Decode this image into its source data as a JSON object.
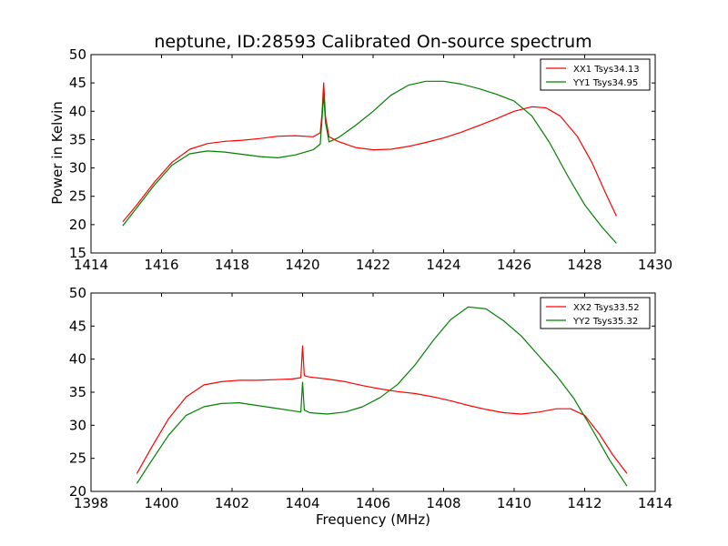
{
  "chart_data": [
    {
      "type": "line",
      "title": "neptune, ID:28593 Calibrated On-source spectrum",
      "xlabel": "",
      "ylabel": "Power in Kelvin",
      "xlim": [
        1414,
        1430
      ],
      "ylim": [
        15,
        50
      ],
      "xticks": [
        1414,
        1416,
        1418,
        1420,
        1422,
        1424,
        1426,
        1428,
        1430
      ],
      "yticks": [
        15,
        20,
        25,
        30,
        35,
        40,
        45,
        50
      ],
      "legend_position": "top-right",
      "series": [
        {
          "name": "XX1 Tsys34.13",
          "color": "#ff0000",
          "x": [
            1414.9,
            1415.3,
            1415.8,
            1416.3,
            1416.8,
            1417.3,
            1417.8,
            1418.3,
            1418.8,
            1419.3,
            1419.8,
            1420.3,
            1420.5,
            1420.55,
            1420.6,
            1420.65,
            1420.75,
            1421.0,
            1421.5,
            1422.0,
            1422.5,
            1423.0,
            1423.5,
            1424.0,
            1424.5,
            1425.0,
            1425.5,
            1426.0,
            1426.5,
            1426.9,
            1427.3,
            1427.8,
            1428.2,
            1428.6,
            1428.9
          ],
          "y": [
            20.5,
            23.5,
            27.5,
            31.0,
            33.3,
            34.3,
            34.7,
            34.9,
            35.2,
            35.6,
            35.7,
            35.5,
            36.2,
            39.5,
            45.0,
            39.0,
            35.5,
            34.7,
            33.6,
            33.2,
            33.3,
            33.8,
            34.5,
            35.3,
            36.3,
            37.5,
            38.7,
            40.0,
            40.8,
            40.6,
            39.2,
            35.5,
            31.0,
            25.5,
            21.5
          ]
        },
        {
          "name": "YY1 Tsys34.95",
          "color": "#008000",
          "x": [
            1414.9,
            1415.3,
            1415.8,
            1416.3,
            1416.8,
            1417.3,
            1417.8,
            1418.3,
            1418.8,
            1419.3,
            1419.8,
            1420.3,
            1420.5,
            1420.55,
            1420.6,
            1420.65,
            1420.75,
            1421.0,
            1421.5,
            1422.0,
            1422.5,
            1423.0,
            1423.5,
            1424.0,
            1424.5,
            1425.0,
            1425.5,
            1426.0,
            1426.5,
            1427.0,
            1427.5,
            1428.0,
            1428.5,
            1428.9
          ],
          "y": [
            19.8,
            23.0,
            27.0,
            30.5,
            32.5,
            33.0,
            32.8,
            32.4,
            32.0,
            31.8,
            32.3,
            33.2,
            34.2,
            38.5,
            43.0,
            38.0,
            34.6,
            35.3,
            37.5,
            40.0,
            42.8,
            44.6,
            45.3,
            45.3,
            44.8,
            44.0,
            43.0,
            41.8,
            39.2,
            34.5,
            28.8,
            23.5,
            19.5,
            16.7
          ]
        }
      ]
    },
    {
      "type": "line",
      "title": "",
      "xlabel": "Frequency (MHz)",
      "ylabel": "",
      "xlim": [
        1398,
        1414
      ],
      "ylim": [
        20,
        50
      ],
      "xticks": [
        1398,
        1400,
        1402,
        1404,
        1406,
        1408,
        1410,
        1412,
        1414
      ],
      "yticks": [
        20,
        25,
        30,
        35,
        40,
        45,
        50
      ],
      "legend_position": "top-right",
      "series": [
        {
          "name": "XX2 Tsys33.52",
          "color": "#ff0000",
          "x": [
            1399.3,
            1399.7,
            1400.2,
            1400.7,
            1401.2,
            1401.7,
            1402.2,
            1402.7,
            1403.2,
            1403.7,
            1403.95,
            1404.0,
            1404.05,
            1404.2,
            1404.7,
            1405.2,
            1405.7,
            1406.2,
            1406.7,
            1407.2,
            1407.7,
            1408.2,
            1408.7,
            1409.2,
            1409.7,
            1410.2,
            1410.7,
            1411.2,
            1411.6,
            1412.0,
            1412.4,
            1412.8,
            1413.2
          ],
          "y": [
            22.7,
            26.5,
            31.0,
            34.3,
            36.1,
            36.6,
            36.8,
            36.8,
            36.9,
            37.0,
            37.2,
            42.0,
            37.5,
            37.3,
            37.0,
            36.6,
            36.0,
            35.5,
            35.1,
            34.8,
            34.3,
            33.7,
            33.0,
            32.4,
            31.9,
            31.7,
            32.0,
            32.5,
            32.5,
            31.5,
            28.8,
            25.5,
            22.7
          ]
        },
        {
          "name": "YY2 Tsys35.32",
          "color": "#008000",
          "x": [
            1399.3,
            1399.7,
            1400.2,
            1400.7,
            1401.2,
            1401.7,
            1402.2,
            1402.7,
            1403.2,
            1403.7,
            1403.95,
            1404.0,
            1404.05,
            1404.2,
            1404.7,
            1405.2,
            1405.7,
            1406.2,
            1406.7,
            1407.2,
            1407.7,
            1408.2,
            1408.7,
            1409.2,
            1409.7,
            1410.2,
            1410.7,
            1411.2,
            1411.7,
            1412.2,
            1412.7,
            1413.2
          ],
          "y": [
            21.2,
            24.5,
            28.5,
            31.5,
            32.8,
            33.3,
            33.4,
            33.0,
            32.6,
            32.2,
            32.0,
            36.5,
            32.3,
            31.9,
            31.7,
            32.0,
            32.8,
            34.2,
            36.2,
            39.2,
            42.8,
            46.0,
            47.9,
            47.6,
            45.8,
            43.5,
            40.5,
            37.5,
            34.0,
            29.5,
            24.8,
            20.8
          ]
        }
      ]
    }
  ]
}
